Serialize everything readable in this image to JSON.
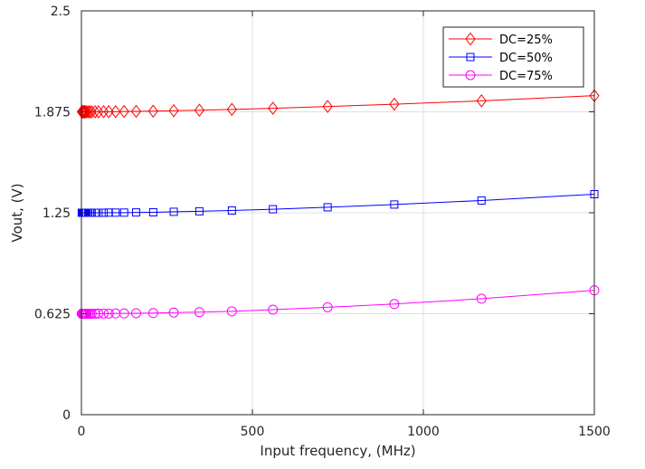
{
  "chart_data": {
    "type": "line",
    "title": "",
    "xlabel": "Input frequency, (MHz)",
    "ylabel": "Vout, (V)",
    "xlim": [
      0,
      1500
    ],
    "ylim": [
      0,
      2.5
    ],
    "x_ticks": [
      0,
      500,
      1000,
      1500
    ],
    "x_tick_labels": [
      "0",
      "500",
      "1000",
      "1500"
    ],
    "y_ticks": [
      0,
      0.625,
      1.25,
      1.875,
      2.5
    ],
    "y_tick_labels": [
      "0",
      "0.625",
      "1.25",
      "1.875",
      "2.5"
    ],
    "grid": true,
    "legend_position": "top-right",
    "x": [
      1,
      2,
      3,
      4,
      5,
      6,
      7,
      8,
      9,
      10,
      12,
      15,
      20,
      25,
      30,
      40,
      50,
      65,
      80,
      100,
      125,
      160,
      210,
      270,
      345,
      440,
      560,
      720,
      915,
      1170,
      1500
    ],
    "series": [
      {
        "name": "DC=25%",
        "color": "#ff0000",
        "marker": "diamond",
        "values": [
          1.875,
          1.875,
          1.875,
          1.875,
          1.875,
          1.875,
          1.875,
          1.875,
          1.875,
          1.875,
          1.875,
          1.875,
          1.875,
          1.875,
          1.875,
          1.875,
          1.875,
          1.876,
          1.876,
          1.876,
          1.877,
          1.878,
          1.879,
          1.882,
          1.885,
          1.89,
          1.897,
          1.908,
          1.922,
          1.943,
          1.975
        ]
      },
      {
        "name": "DC=50%",
        "color": "#0000ff",
        "marker": "square",
        "values": [
          1.25,
          1.25,
          1.25,
          1.25,
          1.25,
          1.25,
          1.25,
          1.25,
          1.25,
          1.25,
          1.25,
          1.25,
          1.25,
          1.25,
          1.25,
          1.25,
          1.25,
          1.25,
          1.251,
          1.251,
          1.251,
          1.252,
          1.253,
          1.256,
          1.259,
          1.264,
          1.272,
          1.284,
          1.301,
          1.326,
          1.365
        ]
      },
      {
        "name": "DC=75%",
        "color": "#ff00ff",
        "marker": "circle",
        "values": [
          0.625,
          0.625,
          0.625,
          0.625,
          0.625,
          0.625,
          0.625,
          0.625,
          0.625,
          0.625,
          0.625,
          0.625,
          0.625,
          0.625,
          0.625,
          0.625,
          0.626,
          0.626,
          0.626,
          0.627,
          0.627,
          0.628,
          0.629,
          0.632,
          0.635,
          0.64,
          0.65,
          0.665,
          0.685,
          0.718,
          0.77
        ]
      }
    ]
  }
}
